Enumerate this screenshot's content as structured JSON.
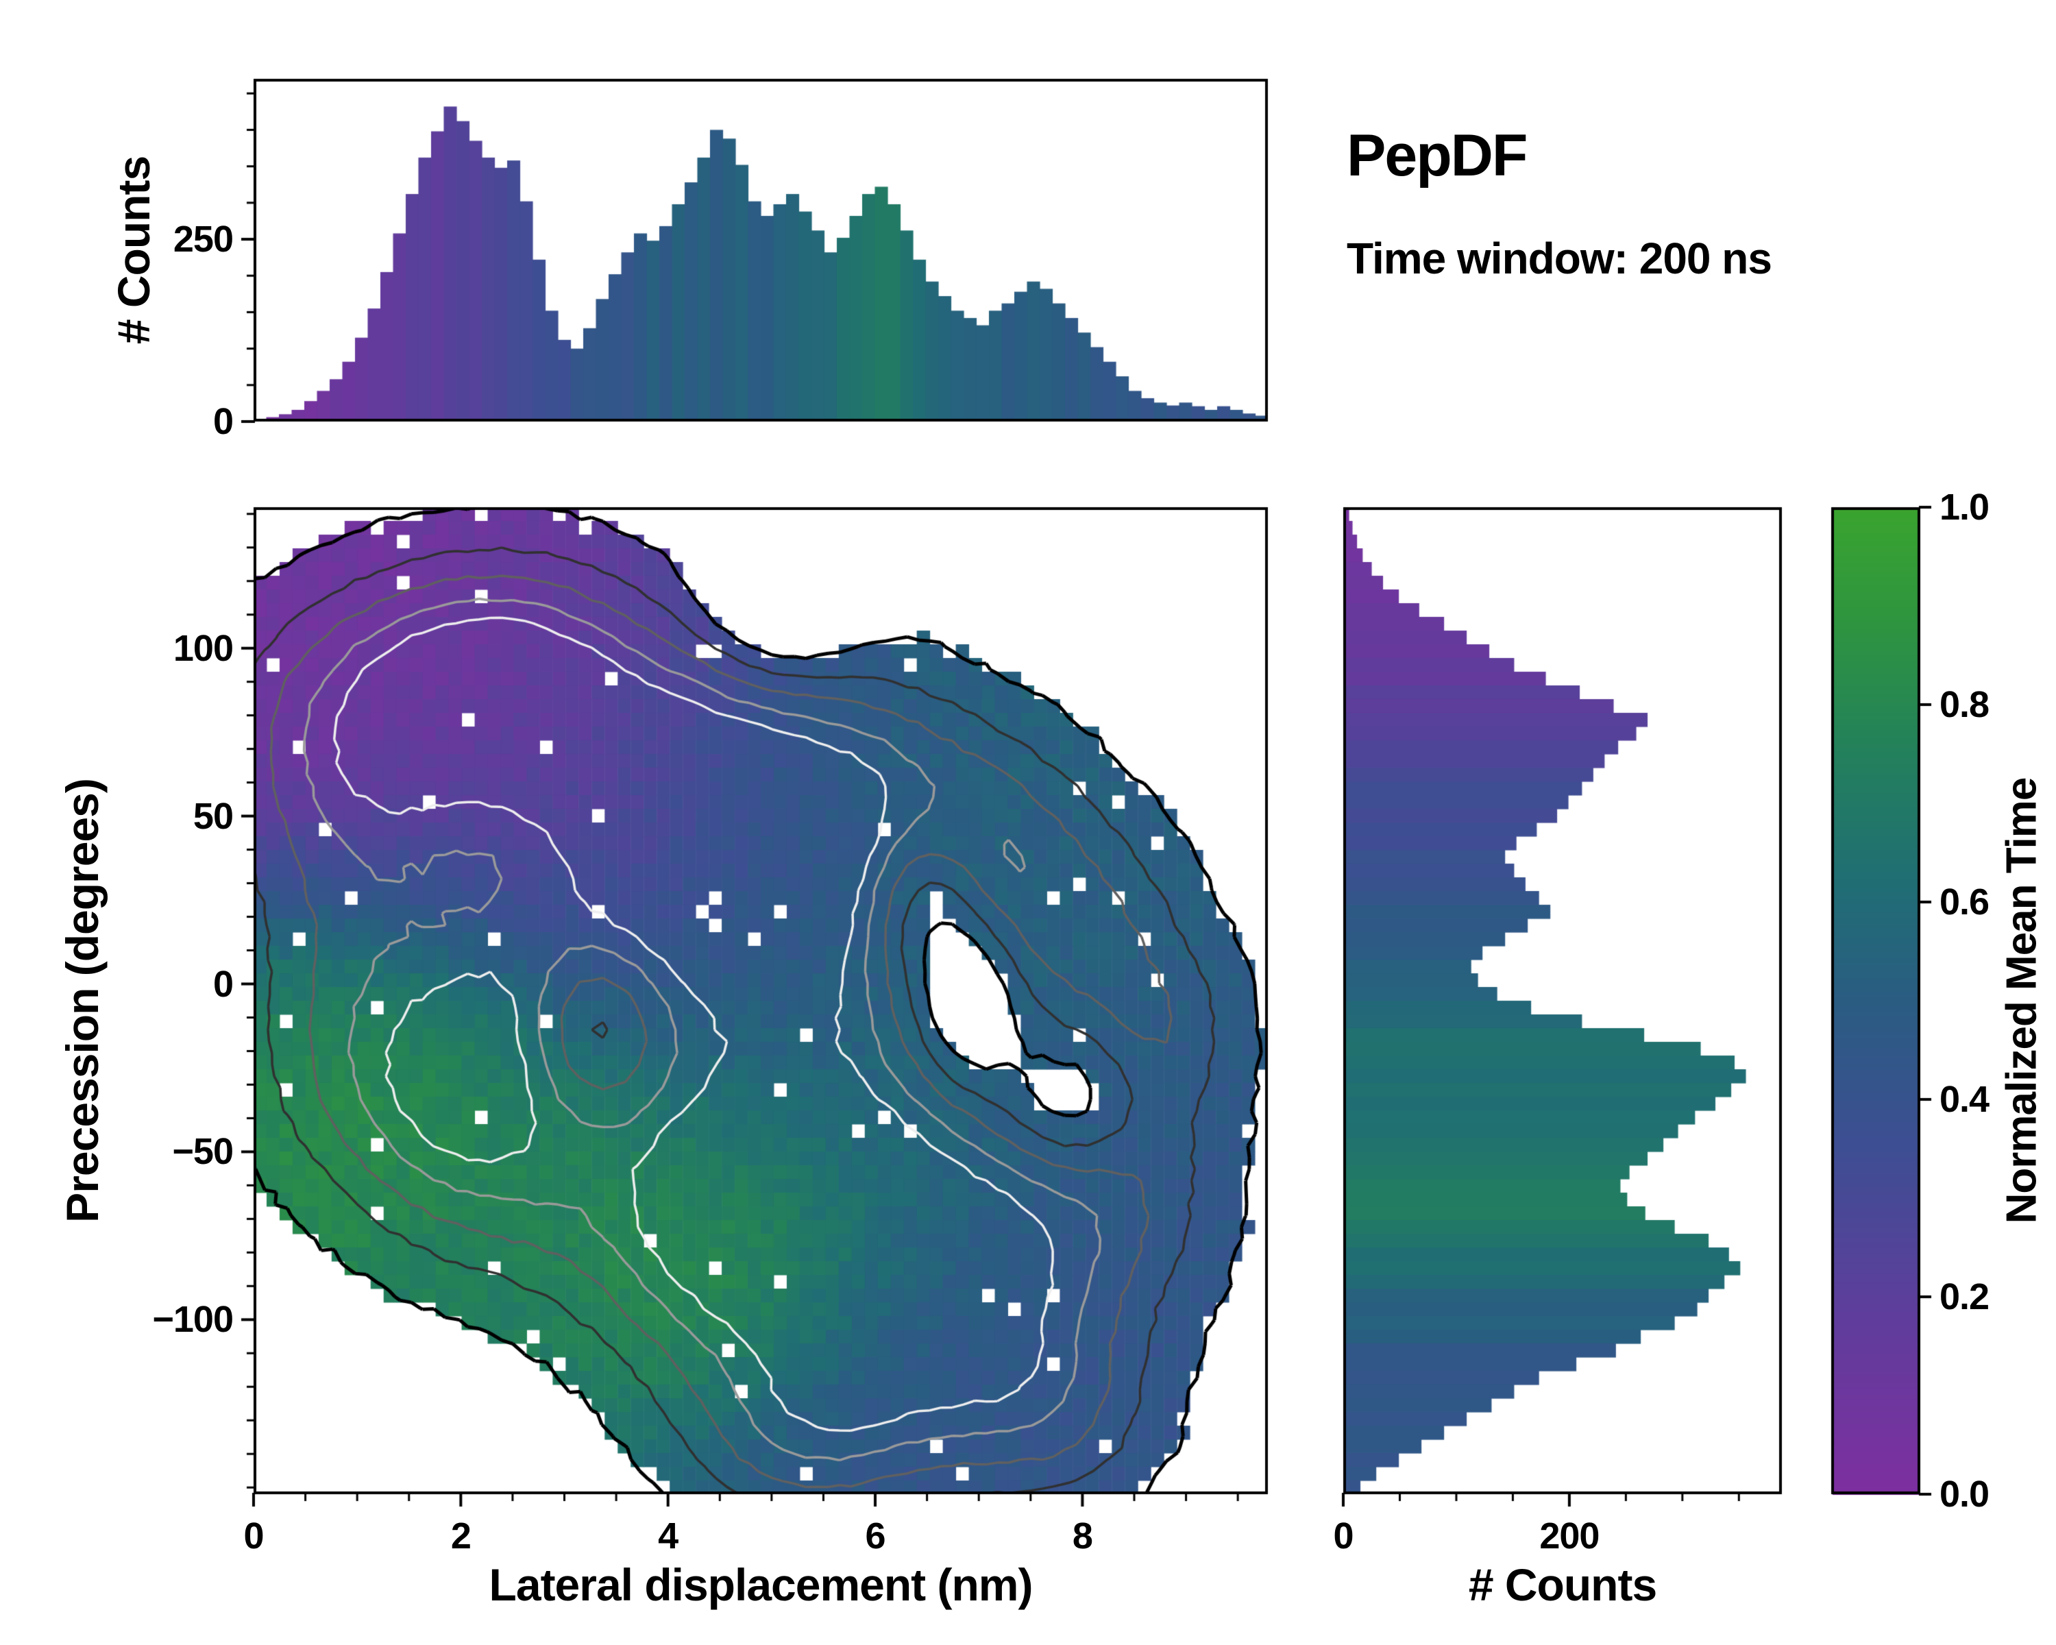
{
  "annotations": {
    "title": "PepDF",
    "subtitle": "Time window: 200 ns"
  },
  "colormap": {
    "stops": [
      [
        0.0,
        "#7e2fa0"
      ],
      [
        0.18,
        "#5f3d9c"
      ],
      [
        0.35,
        "#3e4e93"
      ],
      [
        0.5,
        "#2a5c82"
      ],
      [
        0.62,
        "#206e74"
      ],
      [
        0.75,
        "#23805c"
      ],
      [
        0.88,
        "#2e9440"
      ],
      [
        1.0,
        "#3aa42f"
      ]
    ]
  },
  "chart_data": [
    {
      "id": "top_marginal",
      "type": "bar",
      "ylabel": "# Counts",
      "x_range": [
        0,
        9.79
      ],
      "ylim": [
        0,
        470
      ],
      "ytick_values": [
        0,
        250
      ],
      "ytick_labels": [
        "0",
        "250"
      ],
      "ytick_minor": [
        50,
        100,
        150,
        200,
        300,
        350,
        400,
        450
      ],
      "bins": {
        "values": [
          3,
          6,
          10,
          16,
          28,
          42,
          58,
          82,
          115,
          155,
          205,
          258,
          312,
          362,
          398,
          432,
          412,
          385,
          362,
          348,
          358,
          302,
          222,
          152,
          112,
          100,
          128,
          168,
          202,
          232,
          258,
          248,
          268,
          298,
          328,
          362,
          400,
          388,
          352,
          302,
          282,
          298,
          312,
          288,
          262,
          232,
          252,
          282,
          312,
          322,
          298,
          262,
          222,
          192,
          172,
          152,
          142,
          132,
          152,
          162,
          178,
          192,
          182,
          162,
          142,
          122,
          102,
          82,
          62,
          42,
          32,
          26,
          22,
          26,
          21,
          16,
          21,
          16,
          11,
          8
        ],
        "color_t": [
          0.04,
          0.05,
          0.06,
          0.07,
          0.08,
          0.1,
          0.11,
          0.12,
          0.13,
          0.15,
          0.16,
          0.17,
          0.18,
          0.2,
          0.21,
          0.22,
          0.24,
          0.25,
          0.26,
          0.28,
          0.3,
          0.31,
          0.33,
          0.35,
          0.37,
          0.4,
          0.42,
          0.44,
          0.45,
          0.43,
          0.47,
          0.5,
          0.46,
          0.52,
          0.48,
          0.54,
          0.5,
          0.55,
          0.52,
          0.48,
          0.5,
          0.54,
          0.57,
          0.6,
          0.55,
          0.58,
          0.62,
          0.66,
          0.7,
          0.72,
          0.68,
          0.64,
          0.6,
          0.58,
          0.56,
          0.54,
          0.52,
          0.5,
          0.53,
          0.51,
          0.49,
          0.52,
          0.5,
          0.48,
          0.46,
          0.49,
          0.47,
          0.45,
          0.48,
          0.46,
          0.44,
          0.46,
          0.43,
          0.45,
          0.42,
          0.44,
          0.41,
          0.43,
          0.4,
          0.42
        ]
      }
    },
    {
      "id": "joint",
      "type": "heatmap",
      "xlabel": "Lateral displacement (nm)",
      "ylabel": "Precession (degrees)",
      "x_range": [
        0,
        9.79
      ],
      "y_range": [
        -152,
        142
      ],
      "xtick_values": [
        0,
        2,
        4,
        6,
        8
      ],
      "xtick_labels": [
        "0",
        "2",
        "4",
        "6",
        "8"
      ],
      "xtick_minor": [
        0.5,
        1,
        1.5,
        2.5,
        3,
        3.5,
        4.5,
        5,
        5.5,
        6.5,
        7,
        7.5,
        8.5,
        9,
        9.5
      ],
      "ytick_values": [
        100,
        50,
        0,
        -50,
        -100
      ],
      "ytick_labels": [
        "100",
        "50",
        "0",
        "−50",
        "−100"
      ],
      "ytick_minor": [
        -150,
        -140,
        -130,
        -120,
        -110,
        -90,
        -80,
        -70,
        -60,
        -40,
        -30,
        -20,
        -10,
        10,
        20,
        30,
        40,
        60,
        70,
        80,
        90,
        110,
        120,
        130,
        140
      ],
      "grid": {
        "nx": 78,
        "ny": 72
      },
      "presence_threshold": 0.22,
      "density_blobs": [
        [
          1.4,
          85,
          1.1,
          26,
          1.0
        ],
        [
          1.0,
          45,
          0.9,
          30,
          0.8
        ],
        [
          2.5,
          95,
          0.9,
          25,
          0.9
        ],
        [
          3.6,
          65,
          1.0,
          30,
          0.9
        ],
        [
          4.8,
          60,
          1.1,
          28,
          0.9
        ],
        [
          6.2,
          55,
          0.9,
          25,
          0.75
        ],
        [
          7.3,
          35,
          0.8,
          25,
          0.7
        ],
        [
          8.2,
          10,
          0.7,
          25,
          0.6
        ],
        [
          4.3,
          20,
          1.0,
          28,
          0.85
        ],
        [
          5.6,
          5,
          0.9,
          28,
          0.8
        ],
        [
          1.4,
          -20,
          1.0,
          30,
          1.0
        ],
        [
          2.3,
          -50,
          0.9,
          28,
          0.85
        ],
        [
          4.7,
          -50,
          1.1,
          30,
          1.0
        ],
        [
          4.5,
          -85,
          1.0,
          28,
          0.95
        ],
        [
          6.2,
          -60,
          1.0,
          28,
          0.9
        ],
        [
          7.2,
          -90,
          1.0,
          28,
          0.85
        ],
        [
          8.3,
          -60,
          0.8,
          25,
          0.65
        ],
        [
          6.3,
          -120,
          1.0,
          25,
          0.8
        ],
        [
          5.2,
          -135,
          0.8,
          20,
          0.7
        ],
        [
          2.9,
          0,
          0.8,
          25,
          0.7
        ],
        [
          8.8,
          -15,
          0.6,
          20,
          0.5
        ],
        [
          7.8,
          -130,
          0.7,
          20,
          0.55
        ]
      ],
      "hole_blobs": [
        [
          3.3,
          -12,
          0.45,
          18,
          0.9
        ],
        [
          6.45,
          25,
          0.4,
          20,
          0.85
        ],
        [
          6.9,
          -5,
          0.35,
          18,
          0.8
        ],
        [
          7.9,
          -35,
          0.45,
          15,
          0.7
        ],
        [
          5.1,
          115,
          0.5,
          15,
          0.8
        ]
      ],
      "color_blobs": [
        [
          1.5,
          85,
          1.6,
          45,
          1.2,
          0.06
        ],
        [
          3.0,
          60,
          1.3,
          40,
          0.9,
          0.22
        ],
        [
          4.5,
          30,
          1.4,
          45,
          0.9,
          0.3
        ],
        [
          6.0,
          50,
          1.5,
          40,
          1.0,
          0.58
        ],
        [
          8.0,
          15,
          1.2,
          40,
          0.9,
          0.5
        ],
        [
          1.4,
          -25,
          1.2,
          40,
          1.3,
          0.85
        ],
        [
          4.6,
          -60,
          1.3,
          40,
          1.2,
          0.8
        ],
        [
          4.4,
          -85,
          0.9,
          25,
          1.0,
          0.92
        ],
        [
          6.3,
          -40,
          1.2,
          35,
          0.9,
          0.6
        ],
        [
          7.3,
          -90,
          1.3,
          40,
          1.0,
          0.42
        ],
        [
          6.0,
          -130,
          1.3,
          30,
          1.0,
          0.42
        ],
        [
          8.5,
          -55,
          1.0,
          30,
          0.8,
          0.45
        ],
        [
          5.3,
          -15,
          1.0,
          30,
          0.8,
          0.45
        ],
        [
          2.6,
          -90,
          1.0,
          25,
          0.8,
          0.7
        ]
      ],
      "contour_levels": [
        0.22,
        0.55,
        0.85,
        1.15,
        1.4
      ],
      "contour_colors": [
        "#000000",
        "#303030",
        "#606060",
        "#9a9a9a",
        "#eeeeee"
      ],
      "contour_widths": [
        5,
        3.5,
        3.5,
        3.5,
        3.5
      ]
    },
    {
      "id": "right_marginal",
      "type": "bar",
      "orientation": "horizontal",
      "xlabel": "# Counts",
      "xlim": [
        0,
        388
      ],
      "xtick_values": [
        0,
        200
      ],
      "xtick_labels": [
        "0",
        "200"
      ],
      "xtick_minor": [
        50,
        100,
        150,
        250,
        300,
        350
      ],
      "y_range": [
        -152,
        142
      ],
      "bins": {
        "values": [
          4,
          7,
          11,
          16,
          24,
          34,
          48,
          66,
          88,
          108,
          128,
          150,
          178,
          208,
          238,
          268,
          258,
          242,
          230,
          220,
          210,
          198,
          188,
          170,
          152,
          142,
          150,
          160,
          172,
          182,
          162,
          142,
          122,
          112,
          118,
          135,
          165,
          210,
          265,
          315,
          345,
          355,
          342,
          328,
          310,
          295,
          282,
          268,
          252,
          244,
          250,
          266,
          292,
          322,
          340,
          350,
          336,
          322,
          312,
          292,
          262,
          240,
          205,
          172,
          150,
          130,
          108,
          88,
          68,
          48,
          28,
          14
        ],
        "color_t": [
          0.06,
          0.07,
          0.08,
          0.09,
          0.1,
          0.11,
          0.12,
          0.13,
          0.14,
          0.15,
          0.16,
          0.17,
          0.18,
          0.19,
          0.2,
          0.22,
          0.24,
          0.26,
          0.28,
          0.3,
          0.32,
          0.33,
          0.34,
          0.35,
          0.36,
          0.38,
          0.4,
          0.42,
          0.43,
          0.45,
          0.46,
          0.48,
          0.5,
          0.52,
          0.54,
          0.56,
          0.58,
          0.6,
          0.62,
          0.63,
          0.61,
          0.59,
          0.61,
          0.63,
          0.64,
          0.66,
          0.66,
          0.68,
          0.7,
          0.71,
          0.72,
          0.7,
          0.68,
          0.66,
          0.63,
          0.61,
          0.59,
          0.56,
          0.53,
          0.51,
          0.49,
          0.47,
          0.46,
          0.45,
          0.45,
          0.44,
          0.44,
          0.43,
          0.43,
          0.42,
          0.42,
          0.41
        ]
      }
    },
    {
      "id": "colorbar",
      "type": "colorbar",
      "label": "Normalized Mean Time",
      "range": [
        0,
        1
      ],
      "tick_values": [
        0,
        0.2,
        0.4,
        0.6,
        0.8,
        1.0
      ],
      "tick_labels": [
        "0.0",
        "0.2",
        "0.4",
        "0.6",
        "0.8",
        "1.0"
      ]
    }
  ]
}
